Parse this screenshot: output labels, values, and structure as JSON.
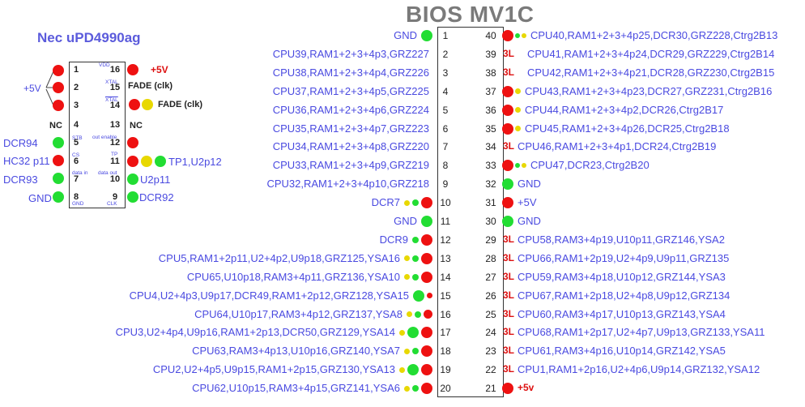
{
  "title": "BIOS MV1C",
  "nec": {
    "title": "Nec uPD4990ag",
    "plus5v_left": "+5V",
    "plus5v_pin16": "+5V",
    "fade_15": "FADE (clk)",
    "fade_14": "FADE (clk)",
    "nc_left": "NC",
    "nc_right": "NC",
    "labels": {
      "dcr94": "DCR94",
      "hc32": "HC32 p11",
      "dcr93": "DCR93",
      "gnd": "GND",
      "tp1": "TP1,U2p12",
      "u2p11": "U2p11",
      "dcr92": "DCR92"
    },
    "pins_left": [
      "1",
      "2",
      "3",
      "4",
      "5",
      "6",
      "7",
      "8"
    ],
    "pins_right": [
      "16",
      "15",
      "14",
      "13",
      "12",
      "11",
      "10",
      "9"
    ],
    "tiny": {
      "vdd": "VDD",
      "xtal": "XTAL",
      "xtal_bar": "XTAL",
      "stb": "STB",
      "cs": "CS",
      "data_in": "data in",
      "gnd": "GND",
      "out_enable": "out enable",
      "tp": "TP",
      "data_out": "data out",
      "clk": "CLK"
    }
  },
  "bios": {
    "left_pins": [
      "1",
      "2",
      "3",
      "4",
      "5",
      "6",
      "7",
      "8",
      "9",
      "10",
      "11",
      "12",
      "13",
      "14",
      "15",
      "16",
      "17",
      "18",
      "19",
      "20"
    ],
    "right_pins": [
      "40",
      "39",
      "38",
      "37",
      "36",
      "35",
      "34",
      "33",
      "32",
      "31",
      "30",
      "29",
      "28",
      "27",
      "26",
      "25",
      "24",
      "23",
      "22",
      "21"
    ],
    "left_labels": [
      "GND",
      "CPU39,RAM1+2+3+4p3,GRZ227",
      "CPU38,RAM1+2+3+4p4,GRZ226",
      "CPU37,RAM1+2+3+4p5,GRZ225",
      "CPU36,RAM1+2+3+4p6,GRZ224",
      "CPU35,RAM1+2+3+4p7,GRZ223",
      "CPU34,RAM1+2+3+4p8,GRZ220",
      "CPU33,RAM1+2+3+4p9,GRZ219",
      "CPU32,RAM1+2+3+4p10,GRZ218",
      "DCR7",
      "GND",
      "DCR9",
      "CPU5,RAM1+2p11,U2+4p2,U9p18,GRZ125,YSA16",
      "CPU65,U10p18,RAM3+4p11,GRZ136,YSA10",
      "CPU4,U2+4p3,U9p17,DCR49,RAM1+2p12,GRZ128,YSA15",
      "CPU64,U10p17,RAM3+4p12,GRZ137,YSA8",
      "CPU3,U2+4p4,U9p16,RAM1+2p13,DCR50,GRZ129,YSA14",
      "CPU63,RAM3+4p13,U10p16,GRZ140,YSA7",
      "CPU2,U2+4p5,U9p15,RAM1+2p15,GRZ130,YSA13",
      "CPU62,U10p15,RAM3+4p15,GRZ141,YSA6"
    ],
    "right_labels": [
      "CPU40,RAM1+2+3+4p25,DCR30,GRZ228,Ctrg2B13",
      "CPU41,RAM1+2+3+4p24,DCR29,GRZ229,Ctrg2B14",
      "CPU42,RAM1+2+3+4p21,DCR28,GRZ230,Ctrg2B15",
      "CPU43,RAM1+2+3+4p23,DCR27,GRZ231,Ctrg2B16",
      "CPU44,RAM1+2+3+4p2,DCR26,Ctrg2B17",
      "CPU45,RAM1+2+3+4p26,DCR25,Ctrg2B18",
      "CPU46,RAM1+2+3+4p1,DCR24,Ctrg2B19",
      "CPU47,DCR23,Ctrg2B20",
      "GND",
      "+5V",
      "GND",
      "CPU58,RAM3+4p19,U10p11,GRZ146,YSA2",
      "CPU66,RAM1+2p19,U2+4p9,U9p11,GRZ135",
      "CPU59,RAM3+4p18,U10p12,GRZ144,YSA3",
      "CPU67,RAM1+2p18,U2+4p8,U9p12,GRZ134",
      "CPU60,RAM3+4p17,U10p13,GRZ143,YSA4",
      "CPU68,RAM1+2p17,U2+4p7,U9p13,GRZ133,YSA11",
      "CPU61,RAM3+4p16,U10p14,GRZ142,YSA5",
      "CPU1,RAM1+2p16,U2+4p6,U9p14,GRZ132,YSA12",
      "+5v"
    ],
    "right_3l": [
      "",
      "3L",
      "3L",
      "",
      "",
      "",
      "3L",
      "",
      "",
      "",
      "",
      "3L",
      "3L",
      "3L",
      "3L",
      "3L",
      "3L",
      "3L",
      "3L",
      ""
    ]
  },
  "colors": {
    "label_blue": "#4a4ae0",
    "title_gray": "#7a7a7a",
    "dot_red": "#ee1111",
    "dot_green": "#22dd33",
    "dot_yellow": "#e8d800"
  }
}
